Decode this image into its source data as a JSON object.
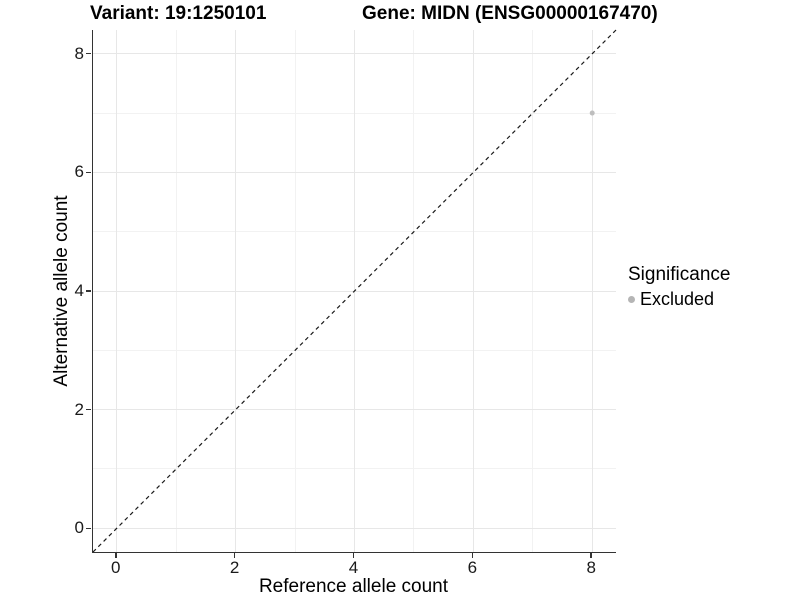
{
  "chart_data": {
    "type": "scatter",
    "title_left": "Variant: 19:1250101",
    "title_right": "Gene: MIDN (ENSG00000167470)",
    "xlabel": "Reference allele count",
    "ylabel": "Alternative allele count",
    "xlim": [
      -0.4,
      8.4
    ],
    "ylim": [
      -0.4,
      8.4
    ],
    "xticks": [
      0,
      2,
      4,
      6,
      8
    ],
    "yticks": [
      0,
      2,
      4,
      6,
      8
    ],
    "xminor": [
      1,
      3,
      5,
      7
    ],
    "yminor": [
      1,
      3,
      5,
      7
    ],
    "grid": true,
    "legend_position": "right",
    "identity_line": {
      "style": "dashed",
      "from": [
        -0.4,
        -0.4
      ],
      "to": [
        8.4,
        8.4
      ],
      "color": "#1a1a1a"
    },
    "series": [
      {
        "name": "Excluded",
        "color": "#bebebe",
        "point_radius": 2.5,
        "points": [
          {
            "x": 8,
            "y": 7
          }
        ]
      }
    ],
    "legend": {
      "title": "Significance",
      "items": [
        {
          "label": "Excluded",
          "color": "#b5b5b5"
        }
      ]
    }
  },
  "colors": {
    "background": "#ffffff",
    "axis_line": "#333333",
    "grid_major": "#e7e7e7",
    "grid_minor": "#f2f2f2",
    "tick_text": "#1a1a1a"
  }
}
